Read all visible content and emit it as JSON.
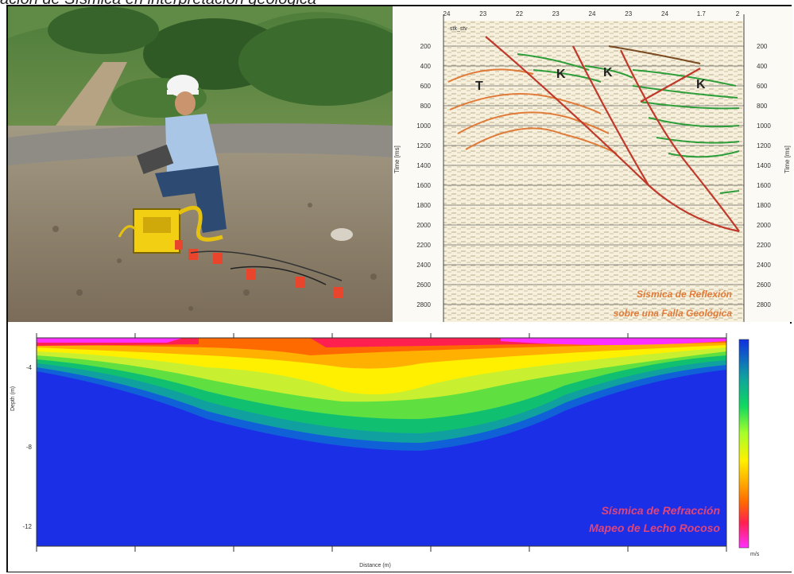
{
  "header": {
    "caption_fragment": "ación de Sísmica en interpretación geológica"
  },
  "reflection_panel": {
    "caption_line1": "Sísmica de Reflexión",
    "caption_line2": "sobre una Falla Geológica",
    "unit_labels": [
      "T",
      "K",
      "K",
      "K"
    ],
    "trace_label": "stk_stv",
    "y_axis_label": "Time [ms]",
    "time_ticks": [
      "200",
      "400",
      "600",
      "800",
      "1000",
      "1200",
      "1400",
      "1600",
      "1800",
      "2000",
      "2200",
      "2400",
      "2600",
      "2800"
    ],
    "top_ticks": [
      "24",
      "23",
      "22",
      "23",
      "24",
      "23",
      "24",
      "1.7",
      "2"
    ],
    "colors": {
      "fault": "#c0392b",
      "horizon_T": "#e07b39",
      "horizon_K": "#2e9e3a",
      "caption": "#e07b39"
    }
  },
  "refraction_panel": {
    "caption_line1": "Sísmica de Refracción",
    "caption_line2": "Mapeo de Lecho Rocoso",
    "x_axis_label": "Distance (m)",
    "y_axis_label": "Depth (m)",
    "y_ticks": [
      "-4",
      "-8",
      "-12"
    ],
    "legend_unit": "m/s",
    "colors": {
      "basement": "#1a2fe6",
      "caption": "#e0457a"
    }
  }
}
